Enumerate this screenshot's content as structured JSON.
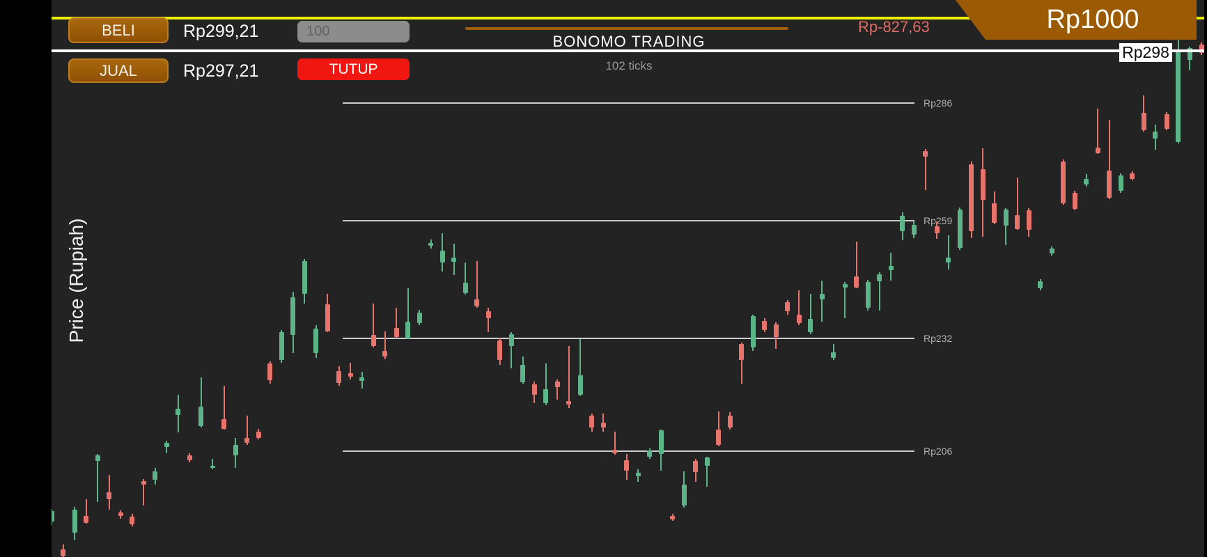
{
  "app": {
    "title": "BONOMO TRADING",
    "tick_counter": "102 ticks"
  },
  "trade_panel": {
    "buy_button_label": "BELI",
    "buy_price": "Rp299,21",
    "amount_value": "100",
    "sell_button_label": "JUAL",
    "sell_price": "Rp297,21",
    "close_button_label": "TUTUP",
    "pnl": "Rp-827,63",
    "balance": "Rp1000"
  },
  "colors": {
    "candle_up": "#5eb489",
    "candle_down": "#e6746c",
    "accent_yellow": "#ecf005",
    "accent_orange": "#9c5a04",
    "close_red": "#f01713",
    "background": "#232323"
  },
  "chart_data": {
    "type": "candlestick",
    "title": "BONOMO TRADING",
    "ylabel": "Price (Rupiah)",
    "current_price": 298,
    "current_price_label": "Rp298",
    "grid": "horizontal",
    "legend": "none",
    "gridlines": [
      {
        "label": "Rp286",
        "price": 286
      },
      {
        "label": "Rp259",
        "price": 259
      },
      {
        "label": "Rp232",
        "price": 232
      },
      {
        "label": "Rp206",
        "price": 206
      }
    ],
    "ylim": [
      182,
      300
    ],
    "candles_format": [
      "open",
      "high",
      "low",
      "close"
    ],
    "candles": [
      [
        189.8,
        192.8,
        189.0,
        192.3
      ],
      [
        183.5,
        184.5,
        181.5,
        181.9
      ],
      [
        187.3,
        193.2,
        185.6,
        192.6
      ],
      [
        191.1,
        195.0,
        189.3,
        189.5
      ],
      [
        203.8,
        205.4,
        194.3,
        205.0
      ],
      [
        196.6,
        200.6,
        192.6,
        195.0
      ],
      [
        192.0,
        192.4,
        190.5,
        191.2
      ],
      [
        191.0,
        191.6,
        188.7,
        189.2
      ],
      [
        199.1,
        199.6,
        193.5,
        198.3
      ],
      [
        199.4,
        202.2,
        198.3,
        201.4
      ],
      [
        207.0,
        208.4,
        205.5,
        207.9
      ],
      [
        214.3,
        218.9,
        210.3,
        215.7
      ],
      [
        205.0,
        205.5,
        203.4,
        203.9
      ],
      [
        211.7,
        222.9,
        211.5,
        216.2
      ],
      [
        202.2,
        204.3,
        201.8,
        202.6
      ],
      [
        213.3,
        221.0,
        210.9,
        211.1
      ],
      [
        205.0,
        209.0,
        202.2,
        207.4
      ],
      [
        209.0,
        214.1,
        207.5,
        207.9
      ],
      [
        210.5,
        211.2,
        208.7,
        209.1
      ],
      [
        226.1,
        226.7,
        221.6,
        222.3
      ],
      [
        227.0,
        233.8,
        226.3,
        233.3
      ],
      [
        232.7,
        242.6,
        228.5,
        241.3
      ],
      [
        242.2,
        250.2,
        239.9,
        249.7
      ],
      [
        228.5,
        235.0,
        227.5,
        234.1
      ],
      [
        239.7,
        242.2,
        233.3,
        233.5
      ],
      [
        224.4,
        225.5,
        221.0,
        221.7
      ],
      [
        223.9,
        226.3,
        222.5,
        223.1
      ],
      [
        222.1,
        224.3,
        220.4,
        222.9
      ],
      [
        232.7,
        239.9,
        229.8,
        230.1
      ],
      [
        229.0,
        233.5,
        227.2,
        227.7
      ],
      [
        234.3,
        238.9,
        232.0,
        232.2
      ],
      [
        231.9,
        243.4,
        231.7,
        235.7
      ],
      [
        235.5,
        238.5,
        235.0,
        237.9
      ],
      [
        253.2,
        254.6,
        252.6,
        253.8
      ],
      [
        249.4,
        256.1,
        247.3,
        252.1
      ],
      [
        249.5,
        253.7,
        246.5,
        250.5
      ],
      [
        242.4,
        249.3,
        242.0,
        244.8
      ],
      [
        240.9,
        249.7,
        239.0,
        239.3
      ],
      [
        238.2,
        238.9,
        233.3,
        236.6
      ],
      [
        231.5,
        232.1,
        225.8,
        226.9
      ],
      [
        230.2,
        233.4,
        225.0,
        232.9
      ],
      [
        221.8,
        227.7,
        221.5,
        225.8
      ],
      [
        221.3,
        222.0,
        217.0,
        218.9
      ],
      [
        217.0,
        226.1,
        216.5,
        220.2
      ],
      [
        222.0,
        222.5,
        217.8,
        220.7
      ],
      [
        217.5,
        230.1,
        216.0,
        216.8
      ],
      [
        218.9,
        231.8,
        218.7,
        223.4
      ],
      [
        214.1,
        214.7,
        210.5,
        211.4
      ],
      [
        212.5,
        214.6,
        210.5,
        211.4
      ],
      [
        206.3,
        210.5,
        205.2,
        205.5
      ],
      [
        203.9,
        205.3,
        199.4,
        201.5
      ],
      [
        200.2,
        201.8,
        199.0,
        201.0
      ],
      [
        204.7,
        206.6,
        204.2,
        206.2
      ],
      [
        205.3,
        211.0,
        201.5,
        210.8
      ],
      [
        191.2,
        191.6,
        190.0,
        190.4
      ],
      [
        193.5,
        201.3,
        193.0,
        198.3
      ],
      [
        203.7,
        204.2,
        199.0,
        201.2
      ],
      [
        202.6,
        204.8,
        197.9,
        204.5
      ],
      [
        210.9,
        215.1,
        207.1,
        207.4
      ],
      [
        214.1,
        214.9,
        210.9,
        211.4
      ],
      [
        230.6,
        231.0,
        221.5,
        226.9
      ],
      [
        229.8,
        237.3,
        229.0,
        237.1
      ],
      [
        235.9,
        236.5,
        233.4,
        233.8
      ],
      [
        235.1,
        235.6,
        229.5,
        232.2
      ],
      [
        240.2,
        240.7,
        237.3,
        238.1
      ],
      [
        237.4,
        242.9,
        235.0,
        235.4
      ],
      [
        233.3,
        242.1,
        232.9,
        236.4
      ],
      [
        240.9,
        245.2,
        235.8,
        242.2
      ],
      [
        227.4,
        230.6,
        227.0,
        228.7
      ],
      [
        243.6,
        244.9,
        236.6,
        244.4
      ],
      [
        246.2,
        254.1,
        243.4,
        243.6
      ],
      [
        238.9,
        245.4,
        238.3,
        244.9
      ],
      [
        245.0,
        247.2,
        238.3,
        246.6
      ],
      [
        247.6,
        251.6,
        245.2,
        248.6
      ],
      [
        256.6,
        260.9,
        254.5,
        260.1
      ],
      [
        255.8,
        258.8,
        254.9,
        258.0
      ],
      [
        275.0,
        275.4,
        266.0,
        273.7
      ],
      [
        257.7,
        258.8,
        254.8,
        256.1
      ],
      [
        249.4,
        255.6,
        247.8,
        250.5
      ],
      [
        252.7,
        262.0,
        252.3,
        261.5
      ],
      [
        272.0,
        272.5,
        255.0,
        256.5
      ],
      [
        270.8,
        275.6,
        255.3,
        263.8
      ],
      [
        263.0,
        265.7,
        258.2,
        258.5
      ],
      [
        257.9,
        261.8,
        253.4,
        261.5
      ],
      [
        260.3,
        268.9,
        256.9,
        257.1
      ],
      [
        261.4,
        261.8,
        255.3,
        256.9
      ],
      [
        243.5,
        245.5,
        243.0,
        245.1
      ],
      [
        251.5,
        253.0,
        251.0,
        252.6
      ],
      [
        272.6,
        273.0,
        262.6,
        263.0
      ],
      [
        265.4,
        265.8,
        261.3,
        261.7
      ],
      [
        267.3,
        269.7,
        266.8,
        268.6
      ],
      [
        275.7,
        284.8,
        274.3,
        274.5
      ],
      [
        270.5,
        282.2,
        264.0,
        264.3
      ],
      [
        265.9,
        269.9,
        265.4,
        269.4
      ],
      [
        269.9,
        270.3,
        268.2,
        268.6
      ],
      [
        283.8,
        287.8,
        279.5,
        279.8
      ],
      [
        277.9,
        281.1,
        275.3,
        279.5
      ],
      [
        283.5,
        283.9,
        279.7,
        280.1
      ],
      [
        277.0,
        300.5,
        276.7,
        298.0
      ],
      [
        296.0,
        299.0,
        293.5,
        298.7
      ],
      [
        299.5,
        300.0,
        297.0,
        297.5
      ]
    ]
  }
}
